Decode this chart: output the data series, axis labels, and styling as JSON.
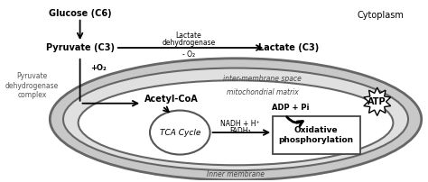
{
  "bg_color": "#ffffff",
  "fig_width": 4.74,
  "fig_height": 2.02,
  "dpi": 100,
  "cytoplasm_label": "Cytoplasm",
  "glucose_label": "Glucose (C6)",
  "pyruvate_label": "Pyruvate (C3)",
  "lactate_label": "Lactate (C3)",
  "lactate_dh_line1": "Lactate",
  "lactate_dh_line2": "dehydrogenase",
  "minus_o2_label": "- O₂",
  "pyruvate_dh_label": "Pyruvate\ndehydrogenase\ncomplex",
  "plus_o2_label": "+O₂",
  "acetyl_coa_label": "Acetyl-CoA",
  "inter_membrane_label": "inter-membrane space",
  "mito_matrix_label": "mitochondrial matrix",
  "tca_label": "TCA Cycle",
  "nadh_line1": "NADH + H⁺",
  "nadh_line2": "FADH₂",
  "adp_label": "ADP + Pi",
  "atp_label": "ATP",
  "ox_phos_line1": "Oxidative",
  "ox_phos_line2": "phosphorylation",
  "inner_membrane_label": "Inner membrane",
  "gray_dark": "#888888",
  "gray_mid": "#aaaaaa",
  "gray_light": "#cccccc",
  "gray_fill": "#d8d8d8",
  "white": "#ffffff"
}
